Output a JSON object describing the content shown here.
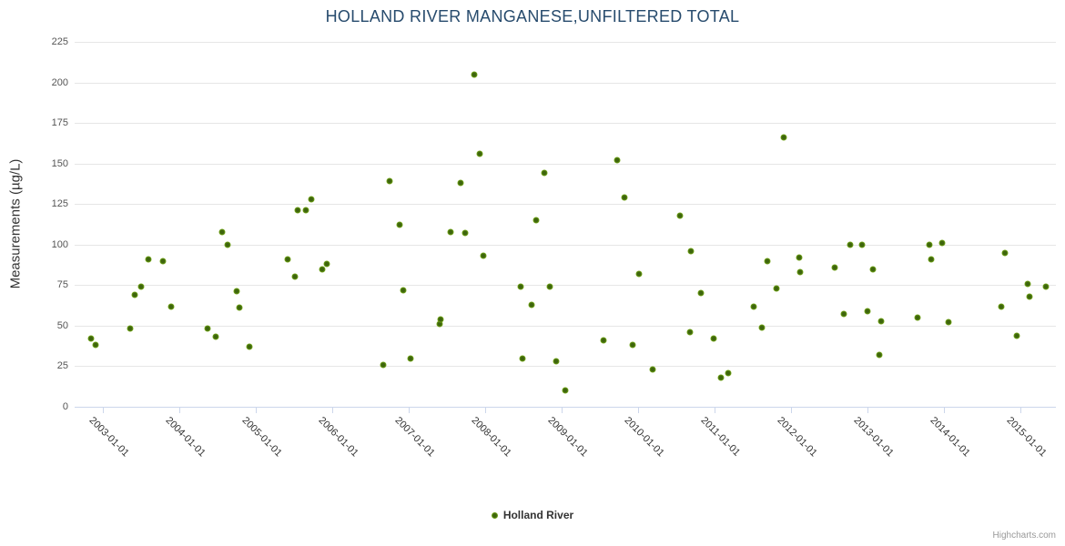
{
  "chart": {
    "title": "HOLLAND RIVER MANGANESE,UNFILTERED TOTAL",
    "y_axis_title": "Measurements (µg/L)",
    "legend_label": "Holland River",
    "credit": "Highcharts.com"
  },
  "colors": {
    "title": "#274b6d",
    "marker_outer": "#8bc41c",
    "marker_inner": "#3e650d",
    "gridline": "#e6e6e6",
    "axis_line": "#ccd6eb",
    "x_label": "#333333",
    "y_label": "#555555",
    "credit": "#999999"
  },
  "chart_data": {
    "type": "scatter",
    "title": "HOLLAND RIVER MANGANESE,UNFILTERED TOTAL",
    "xlabel": "",
    "ylabel": "Measurements (µg/L)",
    "grid": true,
    "legend_position": "bottom-center",
    "x_range": [
      2002.63,
      2015.46
    ],
    "y_range": [
      0,
      225
    ],
    "y_ticks": [
      0,
      25,
      50,
      75,
      100,
      125,
      150,
      175,
      200,
      225
    ],
    "x_ticks": [
      {
        "x": 2003,
        "label": "2003-01-01"
      },
      {
        "x": 2004,
        "label": "2004-01-01"
      },
      {
        "x": 2005,
        "label": "2005-01-01"
      },
      {
        "x": 2006,
        "label": "2006-01-01"
      },
      {
        "x": 2007,
        "label": "2007-01-01"
      },
      {
        "x": 2008,
        "label": "2008-01-01"
      },
      {
        "x": 2009,
        "label": "2009-01-01"
      },
      {
        "x": 2010,
        "label": "2010-01-01"
      },
      {
        "x": 2011,
        "label": "2011-01-01"
      },
      {
        "x": 2012,
        "label": "2012-01-01"
      },
      {
        "x": 2013,
        "label": "2013-01-01"
      },
      {
        "x": 2014,
        "label": "2014-01-01"
      },
      {
        "x": 2015,
        "label": "2015-01-01"
      }
    ],
    "series": [
      {
        "name": "Holland River",
        "points": [
          [
            2002.85,
            42
          ],
          [
            2002.9,
            38
          ],
          [
            2003.36,
            48
          ],
          [
            2003.42,
            69
          ],
          [
            2003.5,
            74
          ],
          [
            2003.59,
            91
          ],
          [
            2003.78,
            90
          ],
          [
            2003.89,
            62
          ],
          [
            2004.37,
            48
          ],
          [
            2004.47,
            43
          ],
          [
            2004.56,
            108
          ],
          [
            2004.63,
            100
          ],
          [
            2004.75,
            71
          ],
          [
            2004.79,
            61
          ],
          [
            2004.92,
            37
          ],
          [
            2005.42,
            91
          ],
          [
            2005.51,
            80
          ],
          [
            2005.55,
            121
          ],
          [
            2005.65,
            121
          ],
          [
            2005.73,
            128
          ],
          [
            2005.87,
            85
          ],
          [
            2005.93,
            88
          ],
          [
            2006.67,
            26
          ],
          [
            2006.75,
            139
          ],
          [
            2006.88,
            112
          ],
          [
            2006.93,
            72
          ],
          [
            2007.02,
            30
          ],
          [
            2007.4,
            51
          ],
          [
            2007.42,
            54
          ],
          [
            2007.55,
            108
          ],
          [
            2007.68,
            138
          ],
          [
            2007.73,
            107
          ],
          [
            2007.85,
            205
          ],
          [
            2007.93,
            156
          ],
          [
            2007.97,
            93
          ],
          [
            2008.46,
            74
          ],
          [
            2008.49,
            30
          ],
          [
            2008.61,
            63
          ],
          [
            2008.67,
            115
          ],
          [
            2008.77,
            144
          ],
          [
            2008.84,
            74
          ],
          [
            2008.93,
            28
          ],
          [
            2009.05,
            10
          ],
          [
            2009.55,
            41
          ],
          [
            2009.72,
            152
          ],
          [
            2009.82,
            129
          ],
          [
            2009.93,
            38
          ],
          [
            2010.01,
            82
          ],
          [
            2010.19,
            23
          ],
          [
            2010.55,
            118
          ],
          [
            2010.68,
            46
          ],
          [
            2010.69,
            96
          ],
          [
            2010.82,
            70
          ],
          [
            2010.99,
            42
          ],
          [
            2011.08,
            18
          ],
          [
            2011.18,
            21
          ],
          [
            2011.51,
            62
          ],
          [
            2011.61,
            49
          ],
          [
            2011.69,
            90
          ],
          [
            2011.81,
            73
          ],
          [
            2011.9,
            166
          ],
          [
            2012.1,
            92
          ],
          [
            2012.11,
            83
          ],
          [
            2012.57,
            86
          ],
          [
            2012.69,
            57
          ],
          [
            2012.77,
            100
          ],
          [
            2012.92,
            100
          ],
          [
            2013.0,
            59
          ],
          [
            2013.07,
            85
          ],
          [
            2013.15,
            32
          ],
          [
            2013.18,
            53
          ],
          [
            2013.65,
            55
          ],
          [
            2013.8,
            100
          ],
          [
            2013.83,
            91
          ],
          [
            2013.97,
            101
          ],
          [
            2014.06,
            52
          ],
          [
            2014.75,
            62
          ],
          [
            2014.79,
            95
          ],
          [
            2014.95,
            44
          ],
          [
            2015.09,
            76
          ],
          [
            2015.12,
            68
          ],
          [
            2015.33,
            74
          ]
        ]
      }
    ]
  }
}
